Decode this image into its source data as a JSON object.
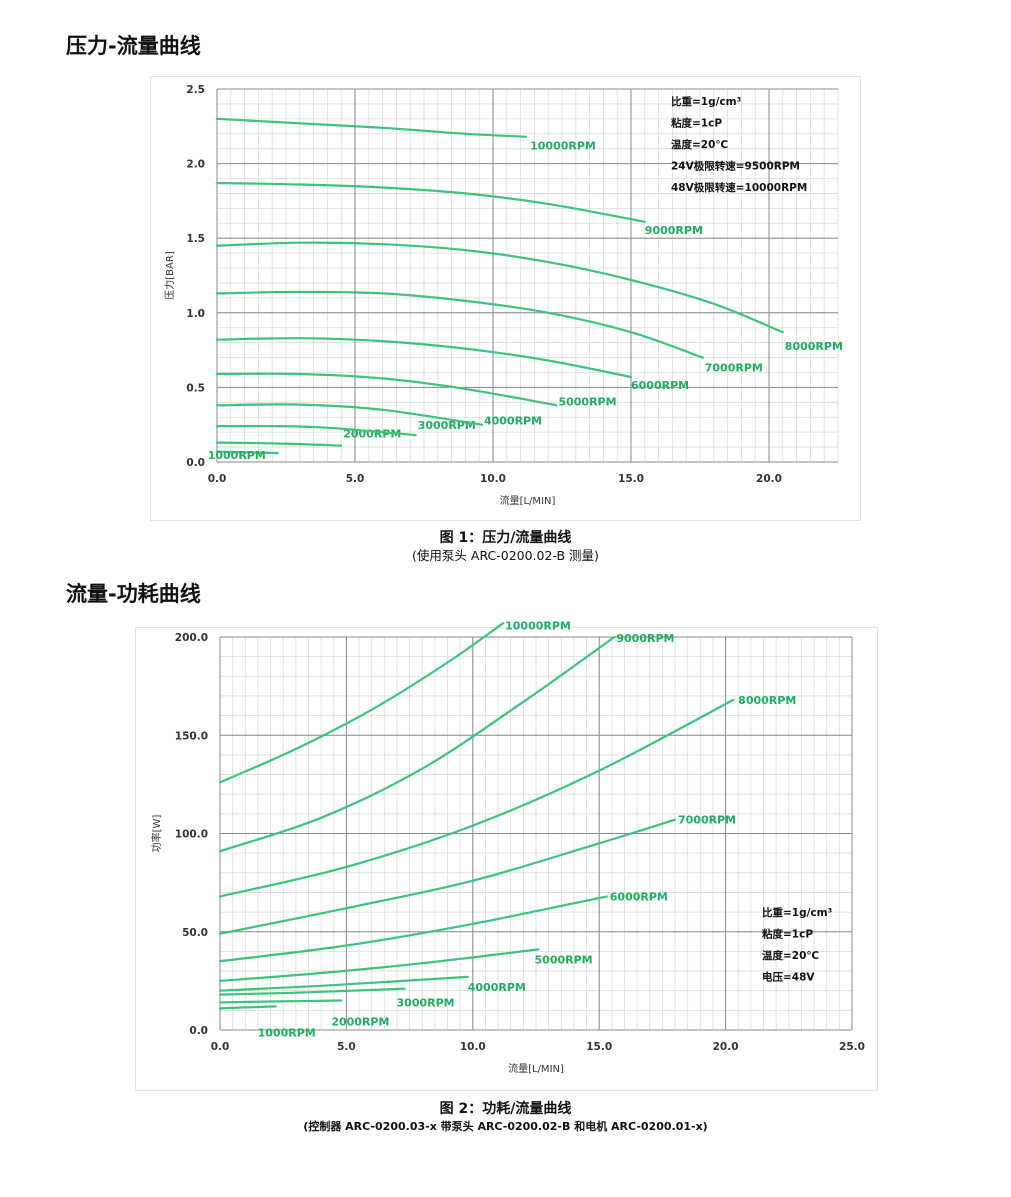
{
  "sections": [
    {
      "title": "压力-流量曲线"
    },
    {
      "title": "流量-功耗曲线"
    }
  ],
  "captions": [
    {
      "title": "图 1：压力/流量曲线",
      "subtitle": "(使用泵头 ARC-0200.02-B 测量)"
    },
    {
      "title": "图 2：功耗/流量曲线",
      "subtitle": "(控制器 ARC-0200.03-x 带泵头 ARC-0200.02-B 和电机 ARC-0200.01-x)"
    }
  ],
  "colors": {
    "curve": "#3cc47c",
    "label": "#1fae5f",
    "grid_major": "#8a8a8a",
    "grid_minor": "#dcdcdc",
    "axis_text": "#333333"
  },
  "chart_data": [
    {
      "type": "line",
      "title": "",
      "xlabel": "流量[L/MIN]",
      "ylabel": "压力[BAR]",
      "xlim": [
        0,
        22.5
      ],
      "ylim": [
        0,
        2.5
      ],
      "xticks": [
        "0.0",
        "5.0",
        "10.0",
        "15.0",
        "20.0"
      ],
      "yticks": [
        "0.0",
        "0.5",
        "1.0",
        "1.5",
        "2.0",
        "2.5"
      ],
      "grid": true,
      "notes": [
        "比重=1g/cm³",
        "粘度=1cP",
        "温度=20℃",
        "24V极限转速=9500RPM",
        "48V极限转速=10000RPM"
      ],
      "notes_position": "top-right",
      "series": [
        {
          "name": "1000RPM",
          "x": [
            0,
            1,
            2.2
          ],
          "y": [
            0.07,
            0.065,
            0.06
          ]
        },
        {
          "name": "2000RPM",
          "x": [
            0,
            2,
            4.5
          ],
          "y": [
            0.13,
            0.125,
            0.11
          ]
        },
        {
          "name": "3000RPM",
          "x": [
            0,
            2,
            4,
            7.2
          ],
          "y": [
            0.24,
            0.24,
            0.23,
            0.18
          ]
        },
        {
          "name": "4000RPM",
          "x": [
            0,
            3,
            6,
            9.6
          ],
          "y": [
            0.38,
            0.385,
            0.35,
            0.25
          ]
        },
        {
          "name": "5000RPM",
          "x": [
            0,
            3,
            6,
            9,
            12.3
          ],
          "y": [
            0.59,
            0.59,
            0.56,
            0.49,
            0.38
          ]
        },
        {
          "name": "6000RPM",
          "x": [
            0,
            3,
            6,
            9,
            12,
            15
          ],
          "y": [
            0.82,
            0.83,
            0.81,
            0.76,
            0.68,
            0.57
          ]
        },
        {
          "name": "7000RPM",
          "x": [
            0,
            3,
            6,
            9,
            12,
            15,
            17.6
          ],
          "y": [
            1.13,
            1.14,
            1.13,
            1.08,
            1.0,
            0.87,
            0.7
          ]
        },
        {
          "name": "8000RPM",
          "x": [
            0,
            3,
            6,
            9,
            12,
            15,
            18,
            20.5
          ],
          "y": [
            1.45,
            1.47,
            1.46,
            1.42,
            1.34,
            1.22,
            1.06,
            0.87
          ]
        },
        {
          "name": "9000RPM",
          "x": [
            0,
            3,
            6,
            9,
            12,
            15.5
          ],
          "y": [
            1.87,
            1.86,
            1.84,
            1.8,
            1.73,
            1.61
          ]
        },
        {
          "name": "10000RPM",
          "x": [
            0,
            3,
            6,
            9,
            11.2
          ],
          "y": [
            2.3,
            2.27,
            2.24,
            2.2,
            2.18
          ]
        }
      ]
    },
    {
      "type": "line",
      "title": "",
      "xlabel": "流量[L/MIN]",
      "ylabel": "功率[W]",
      "xlim": [
        0,
        25
      ],
      "ylim": [
        0,
        200
      ],
      "xticks": [
        "0.0",
        "5.0",
        "10.0",
        "15.0",
        "20.0",
        "25.0"
      ],
      "yticks": [
        "0.0",
        "50.0",
        "100.0",
        "150.0",
        "200.0"
      ],
      "grid": true,
      "notes": [
        "比重=1g/cm³",
        "粘度=1cP",
        "温度=20℃",
        "电压=48V"
      ],
      "notes_position": "bottom-right",
      "series": [
        {
          "name": "1000RPM",
          "x": [
            0,
            1,
            2.2
          ],
          "y": [
            11,
            11.5,
            12
          ]
        },
        {
          "name": "2000RPM",
          "x": [
            0,
            2,
            4.8
          ],
          "y": [
            14,
            14.5,
            15
          ]
        },
        {
          "name": "3000RPM",
          "x": [
            0,
            3,
            7.3
          ],
          "y": [
            18,
            19,
            21
          ]
        },
        {
          "name": "4000RPM",
          "x": [
            0,
            4,
            9.8
          ],
          "y": [
            20,
            22.5,
            27
          ]
        },
        {
          "name": "5000RPM",
          "x": [
            0,
            4,
            8,
            12.6
          ],
          "y": [
            25,
            29,
            34,
            41
          ]
        },
        {
          "name": "6000RPM",
          "x": [
            0,
            5,
            10,
            15.3
          ],
          "y": [
            35,
            43,
            54,
            68
          ]
        },
        {
          "name": "7000RPM",
          "x": [
            0,
            5,
            10,
            15,
            18
          ],
          "y": [
            49,
            62,
            76,
            95,
            107
          ]
        },
        {
          "name": "8000RPM",
          "x": [
            0,
            5,
            10,
            15,
            20.3
          ],
          "y": [
            68,
            83,
            104,
            132,
            168
          ]
        },
        {
          "name": "9000RPM",
          "x": [
            0,
            4,
            8,
            12,
            15.6
          ],
          "y": [
            91,
            108,
            133,
            167,
            200
          ]
        },
        {
          "name": "10000RPM",
          "x": [
            0,
            3,
            6,
            9,
            11.2
          ],
          "y": [
            126,
            143,
            163,
            187,
            207
          ]
        }
      ]
    }
  ]
}
